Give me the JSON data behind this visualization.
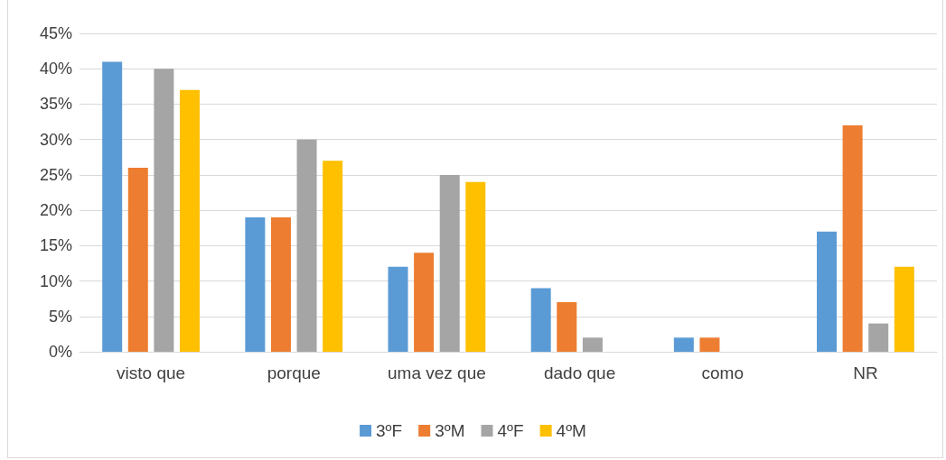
{
  "chart_data": {
    "type": "bar",
    "categories": [
      "visto que",
      "porque",
      "uma vez que",
      "dado que",
      "como",
      "NR"
    ],
    "series": [
      {
        "name": "3ºF",
        "color": "#5b9bd5",
        "values": [
          41,
          19,
          12,
          9,
          2,
          17
        ]
      },
      {
        "name": "3ºM",
        "color": "#ed7d31",
        "values": [
          26,
          19,
          14,
          7,
          2,
          32
        ]
      },
      {
        "name": "4ºF",
        "color": "#a5a5a5",
        "values": [
          40,
          30,
          25,
          2,
          0,
          4
        ]
      },
      {
        "name": "4ºM",
        "color": "#ffc000",
        "values": [
          37,
          27,
          24,
          0,
          0,
          12
        ]
      }
    ],
    "ylim": [
      0,
      45
    ],
    "yticks": [
      {
        "value": 0,
        "label": "0%"
      },
      {
        "value": 5,
        "label": "5%"
      },
      {
        "value": 10,
        "label": "10%"
      },
      {
        "value": 15,
        "label": "15%"
      },
      {
        "value": 20,
        "label": "20%"
      },
      {
        "value": 25,
        "label": "25%"
      },
      {
        "value": 30,
        "label": "30%"
      },
      {
        "value": 35,
        "label": "35%"
      },
      {
        "value": 40,
        "label": "40%"
      },
      {
        "value": 45,
        "label": "45%"
      }
    ],
    "grid": "y",
    "legend": "bottom"
  }
}
